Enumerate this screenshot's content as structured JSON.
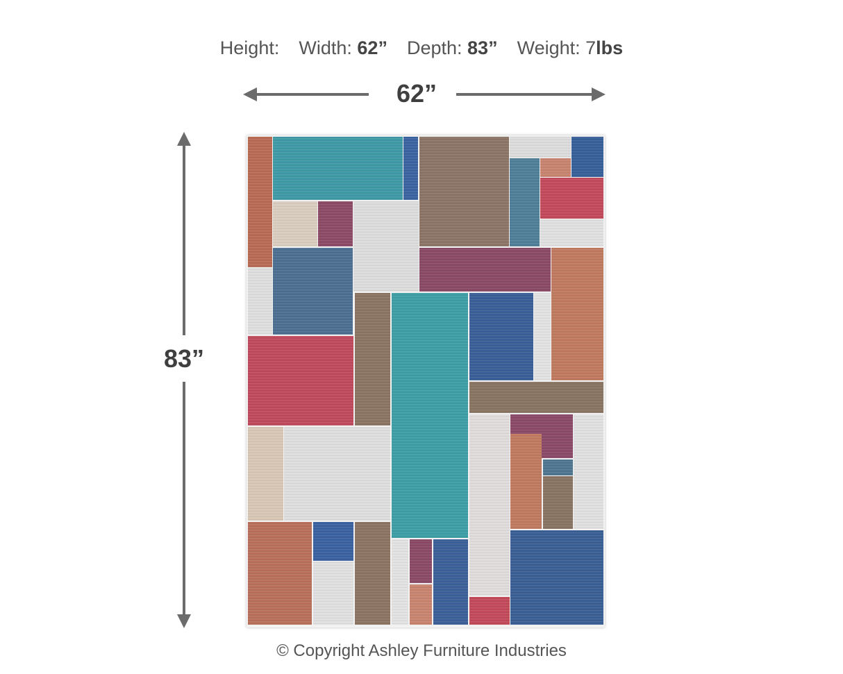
{
  "specs": {
    "height_label": "Height:",
    "width_label": "Width:",
    "width_value": "62”",
    "depth_label": "Depth:",
    "depth_value": "83”",
    "weight_label": "Weight:",
    "weight_number": "7",
    "weight_unit": "lbs"
  },
  "dimensions": {
    "width_label": "62”",
    "height_label": "83”"
  },
  "product": {
    "type": "area rug with patchwork rectangle pattern",
    "colors": [
      "#3e9aa6",
      "#3b62a0",
      "#8c7566",
      "#c24a5a",
      "#8a4a66",
      "#c07a60",
      "#dedede",
      "#d9cdbf"
    ]
  },
  "footer": {
    "copyright": "© Copyright Ashley Furniture Industries"
  }
}
